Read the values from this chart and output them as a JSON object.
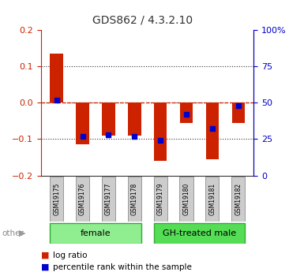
{
  "title": "GDS862 / 4.3.2.10",
  "samples": [
    "GSM19175",
    "GSM19176",
    "GSM19177",
    "GSM19178",
    "GSM19179",
    "GSM19180",
    "GSM19181",
    "GSM19182"
  ],
  "log_ratio": [
    0.135,
    -0.115,
    -0.09,
    -0.09,
    -0.16,
    -0.055,
    -0.155,
    -0.055
  ],
  "percentile_rank": [
    52,
    27,
    28,
    27,
    24,
    42,
    32,
    48
  ],
  "groups": [
    {
      "label": "female",
      "start": 0,
      "end": 3,
      "color": "#90ee90"
    },
    {
      "label": "GH-treated male",
      "start": 4,
      "end": 7,
      "color": "#55dd55"
    }
  ],
  "ylim_left": [
    -0.2,
    0.2
  ],
  "ylim_right": [
    0,
    100
  ],
  "bar_color": "#cc2200",
  "dot_color": "#0000cc",
  "left_axis_color": "#cc2200",
  "right_axis_color": "#0000cc",
  "zero_line_color": "#cc2200",
  "bar_width": 0.5,
  "group_border_color": "#33aa33",
  "sample_box_color": "#cccccc",
  "sample_border_color": "#999999"
}
